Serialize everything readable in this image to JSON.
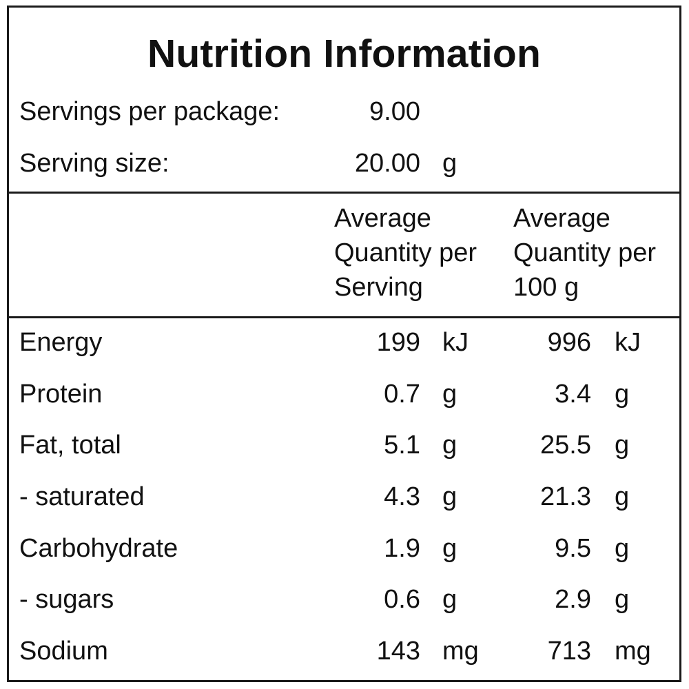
{
  "title": "Nutrition Information",
  "servings": {
    "per_package_label": "Servings per package:",
    "per_package_value": "9.00",
    "size_label": "Serving size:",
    "size_value": "20.00",
    "size_unit": "g"
  },
  "columns": {
    "per_serving": [
      "Average",
      "Quantity per",
      "Serving"
    ],
    "per_100g": [
      "Average",
      "Quantity per",
      "100 g"
    ]
  },
  "rows": [
    {
      "name": "Energy",
      "serving_value": "199",
      "serving_unit": "kJ",
      "per100_value": "996",
      "per100_unit": "kJ"
    },
    {
      "name": "Protein",
      "serving_value": "0.7",
      "serving_unit": "g",
      "per100_value": "3.4",
      "per100_unit": "g"
    },
    {
      "name": "Fat, total",
      "serving_value": "5.1",
      "serving_unit": "g",
      "per100_value": "25.5",
      "per100_unit": "g"
    },
    {
      "name": "- saturated",
      "serving_value": "4.3",
      "serving_unit": "g",
      "per100_value": "21.3",
      "per100_unit": "g"
    },
    {
      "name": "Carbohydrate",
      "serving_value": "1.9",
      "serving_unit": "g",
      "per100_value": "9.5",
      "per100_unit": "g"
    },
    {
      "name": "- sugars",
      "serving_value": "0.6",
      "serving_unit": "g",
      "per100_value": "2.9",
      "per100_unit": "g"
    },
    {
      "name": "Sodium",
      "serving_value": "143",
      "serving_unit": "mg",
      "per100_value": "713",
      "per100_unit": "mg"
    }
  ]
}
